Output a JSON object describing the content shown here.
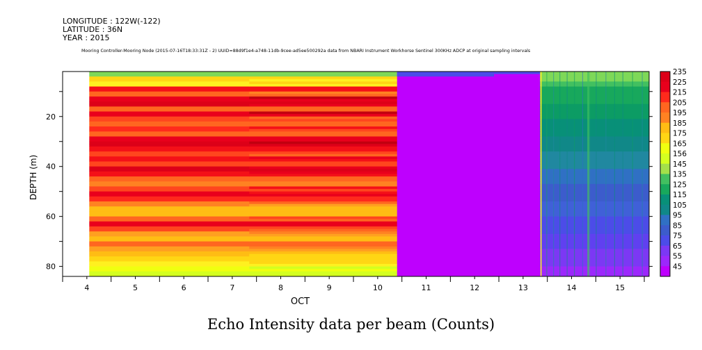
{
  "header": {
    "longitude": "LONGITUDE : 122W(-122)",
    "latitude": "LATITUDE : 36N",
    "year": "YEAR : 2015",
    "subtitle": "Mooring Controller-Mooring Node (2015-07-16T18:33:31Z - 2) UUID=88d9f1e4-a748-11db-9cee-ad5ee500292a data from NBARI Instrument Workhorse Sentinel 300KHz ADCP at original sampling intervals"
  },
  "caption": "Echo Intensity data per beam (Counts)",
  "colors": {
    "missing": "#ffffff",
    "palette": [
      "#c10010",
      "#dd0018",
      "#e9001c",
      "#f41018",
      "#ff2a1c",
      "#ff461e",
      "#ff6620",
      "#ff8222",
      "#ffa020",
      "#ffbd14",
      "#ffd614",
      "#fff020",
      "#f0ff10",
      "#d4ff20",
      "#c2f040",
      "#a4e04a",
      "#7ed858",
      "#42c060",
      "#18a85c",
      "#0c9c64",
      "#089078",
      "#108888",
      "#2088a0",
      "#3070c4",
      "#3c5ccc",
      "#4060d8",
      "#4c4ce8",
      "#6040f0",
      "#7c38f4",
      "#9c28fc",
      "#be00fe"
    ]
  },
  "chart_data": {
    "type": "heatmap",
    "title": "Echo Intensity data per beam (Counts)",
    "xlabel": "OCT",
    "ylabel": "DEPTH (m)",
    "x_ticks": [
      "4",
      "5",
      "6",
      "7",
      "8",
      "9",
      "10",
      "11",
      "12",
      "13",
      "14",
      "15"
    ],
    "y_ticks": [
      "20",
      "40",
      "60",
      "80"
    ],
    "xlim": [
      3.5,
      15.6
    ],
    "ylim": [
      2,
      84
    ],
    "colorbar": {
      "levels": [
        "235",
        "225",
        "215",
        "205",
        "195",
        "185",
        "175",
        "165",
        "156",
        "145",
        "135",
        "125",
        "115",
        "105",
        "95",
        "85",
        "75",
        "65",
        "55",
        "45"
      ],
      "min": 45,
      "max": 235
    },
    "segments": [
      {
        "x_start": 3.5,
        "x_end": 4.05,
        "description": "missing"
      },
      {
        "x_start": 4.05,
        "x_end": 10.4,
        "value_range": [
          155,
          235
        ],
        "pattern": "horizontal banding, red/orange/yellow"
      },
      {
        "x_start": 10.4,
        "x_end": 13.35,
        "value_range": [
          45,
          85
        ],
        "pattern": "uniform magenta, blue near surface"
      },
      {
        "x_start": 13.35,
        "x_end": 15.6,
        "value_range": [
          50,
          130
        ],
        "pattern": "green near surface grading to blue/purple at depth"
      }
    ],
    "depth_profile_left": [
      {
        "depth": 2,
        "value": 135
      },
      {
        "depth": 4,
        "value": 170
      },
      {
        "depth": 6,
        "value": 165
      },
      {
        "depth": 8,
        "value": 215
      },
      {
        "depth": 10,
        "value": 195
      },
      {
        "depth": 12,
        "value": 225
      },
      {
        "depth": 14,
        "value": 230
      },
      {
        "depth": 16,
        "value": 200
      },
      {
        "depth": 18,
        "value": 225
      },
      {
        "depth": 20,
        "value": 205
      },
      {
        "depth": 22,
        "value": 195
      },
      {
        "depth": 24,
        "value": 210
      },
      {
        "depth": 26,
        "value": 195
      },
      {
        "depth": 28,
        "value": 225
      },
      {
        "depth": 30,
        "value": 230
      },
      {
        "depth": 32,
        "value": 215
      },
      {
        "depth": 34,
        "value": 205
      },
      {
        "depth": 36,
        "value": 215
      },
      {
        "depth": 38,
        "value": 205
      },
      {
        "depth": 40,
        "value": 230
      },
      {
        "depth": 42,
        "value": 215
      },
      {
        "depth": 44,
        "value": 200
      },
      {
        "depth": 46,
        "value": 190
      },
      {
        "depth": 48,
        "value": 205
      },
      {
        "depth": 50,
        "value": 225
      },
      {
        "depth": 52,
        "value": 210
      },
      {
        "depth": 54,
        "value": 190
      },
      {
        "depth": 56,
        "value": 180
      },
      {
        "depth": 58,
        "value": 175
      },
      {
        "depth": 60,
        "value": 195
      },
      {
        "depth": 62,
        "value": 225
      },
      {
        "depth": 64,
        "value": 205
      },
      {
        "depth": 66,
        "value": 185
      },
      {
        "depth": 68,
        "value": 175
      },
      {
        "depth": 70,
        "value": 200
      },
      {
        "depth": 72,
        "value": 185
      },
      {
        "depth": 74,
        "value": 175
      },
      {
        "depth": 76,
        "value": 170
      },
      {
        "depth": 78,
        "value": 165
      },
      {
        "depth": 80,
        "value": 160
      },
      {
        "depth": 82,
        "value": 155
      }
    ]
  }
}
